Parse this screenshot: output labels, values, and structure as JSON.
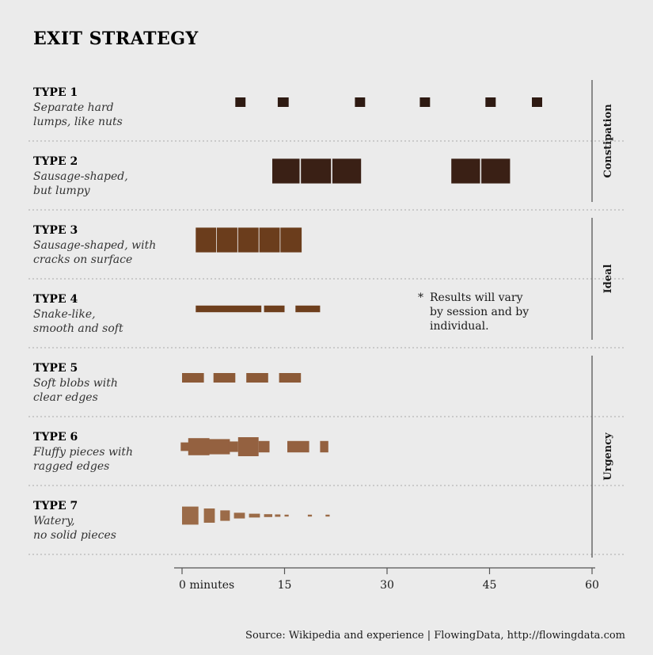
{
  "chart_data": {
    "type": "bar",
    "title": "EXIT STRATEGY",
    "x_axis": {
      "range": [
        0,
        60
      ],
      "ticks": [
        0,
        15,
        30,
        45,
        60
      ],
      "tick_labels": [
        "0 minutes",
        "15",
        "30",
        "45",
        "60"
      ]
    },
    "types": [
      {
        "name": "TYPE 1",
        "desc": [
          "Separate hard",
          "lumps, like nuts"
        ],
        "color": "#2e1a12",
        "pieces": [
          {
            "start": 7.8,
            "end": 9.3,
            "size": 1
          },
          {
            "start": 14.0,
            "end": 15.6,
            "size": 1
          },
          {
            "start": 25.3,
            "end": 26.8,
            "size": 1
          },
          {
            "start": 34.8,
            "end": 36.3,
            "size": 1
          },
          {
            "start": 44.4,
            "end": 45.9,
            "size": 1
          },
          {
            "start": 51.2,
            "end": 52.7,
            "size": 1
          }
        ]
      },
      {
        "name": "TYPE 2",
        "desc": [
          "Sausage-shaped,",
          "but lumpy"
        ],
        "color": "#3a2015",
        "pieces": [
          {
            "start": 13.2,
            "end": 17.2,
            "size": 2.6
          },
          {
            "start": 17.4,
            "end": 21.8,
            "size": 2.6
          },
          {
            "start": 22.0,
            "end": 26.2,
            "size": 2.6
          },
          {
            "start": 39.4,
            "end": 43.6,
            "size": 2.6
          },
          {
            "start": 43.8,
            "end": 48.0,
            "size": 2.6
          }
        ]
      },
      {
        "name": "TYPE 3",
        "desc": [
          "Sausage-shaped, with",
          "cracks on surface"
        ],
        "color": "#6b3d1c",
        "pieces": [
          {
            "start": 2.0,
            "end": 5.0,
            "size": 2.6
          },
          {
            "start": 5.1,
            "end": 8.1,
            "size": 2.6
          },
          {
            "start": 8.2,
            "end": 11.2,
            "size": 2.6
          },
          {
            "start": 11.3,
            "end": 14.3,
            "size": 2.6
          },
          {
            "start": 14.4,
            "end": 17.5,
            "size": 2.6
          }
        ]
      },
      {
        "name": "TYPE 4",
        "desc": [
          "Snake-like,",
          "smooth and soft"
        ],
        "color": "#6e3f1d",
        "pieces": [
          {
            "start": 2.0,
            "end": 11.6,
            "size": 0.7
          },
          {
            "start": 12.0,
            "end": 15.0,
            "size": 0.7
          },
          {
            "start": 16.6,
            "end": 20.2,
            "size": 0.7
          }
        ]
      },
      {
        "name": "TYPE 5",
        "desc": [
          "Soft blobs with",
          "clear edges"
        ],
        "color": "#8c5a37",
        "pieces": [
          {
            "start": 0.0,
            "end": 3.2,
            "size": 1
          },
          {
            "start": 4.6,
            "end": 7.8,
            "size": 1
          },
          {
            "start": 9.4,
            "end": 12.6,
            "size": 1
          },
          {
            "start": 14.2,
            "end": 17.4,
            "size": 1
          }
        ]
      },
      {
        "name": "TYPE 6",
        "desc": [
          "Fluffy pieces with",
          "ragged edges"
        ],
        "color": "#946140",
        "pieces": [
          {
            "start": -0.2,
            "end": 1.0,
            "size": 0.9
          },
          {
            "start": 0.9,
            "end": 4.0,
            "size": 1.8
          },
          {
            "start": 3.8,
            "end": 7.0,
            "size": 1.6
          },
          {
            "start": 6.8,
            "end": 8.2,
            "size": 1.1
          },
          {
            "start": 8.2,
            "end": 11.2,
            "size": 2.0
          },
          {
            "start": 11.2,
            "end": 12.8,
            "size": 1.2
          },
          {
            "start": 15.4,
            "end": 18.6,
            "size": 1.2
          },
          {
            "start": 20.2,
            "end": 21.4,
            "size": 1.2
          }
        ]
      },
      {
        "name": "TYPE 7",
        "desc": [
          "Watery,",
          "no solid pieces"
        ],
        "color": "#9b6b48",
        "pieces": [
          {
            "start": 0.0,
            "end": 2.4,
            "size": 1.9
          },
          {
            "start": 3.2,
            "end": 4.8,
            "size": 1.5
          },
          {
            "start": 5.6,
            "end": 7.0,
            "size": 1.1
          },
          {
            "start": 7.6,
            "end": 9.2,
            "size": 0.6
          },
          {
            "start": 9.8,
            "end": 11.4,
            "size": 0.4
          },
          {
            "start": 12.0,
            "end": 13.2,
            "size": 0.3
          },
          {
            "start": 13.6,
            "end": 14.4,
            "size": 0.25
          },
          {
            "start": 15.0,
            "end": 15.6,
            "size": 0.2
          },
          {
            "start": 18.4,
            "end": 19.0,
            "size": 0.2
          },
          {
            "start": 21.0,
            "end": 21.6,
            "size": 0.2
          }
        ]
      }
    ],
    "groups": [
      {
        "label": "Constipation",
        "types": [
          1,
          2
        ]
      },
      {
        "label": "Ideal",
        "types": [
          3,
          4
        ]
      },
      {
        "label": "Urgency",
        "types": [
          5,
          6,
          7
        ]
      }
    ],
    "note": [
      "*",
      "Results will vary",
      "by session and by",
      "individual."
    ],
    "source": "Source: Wikipedia and experience | FlowingData, http://flowingdata.com"
  }
}
